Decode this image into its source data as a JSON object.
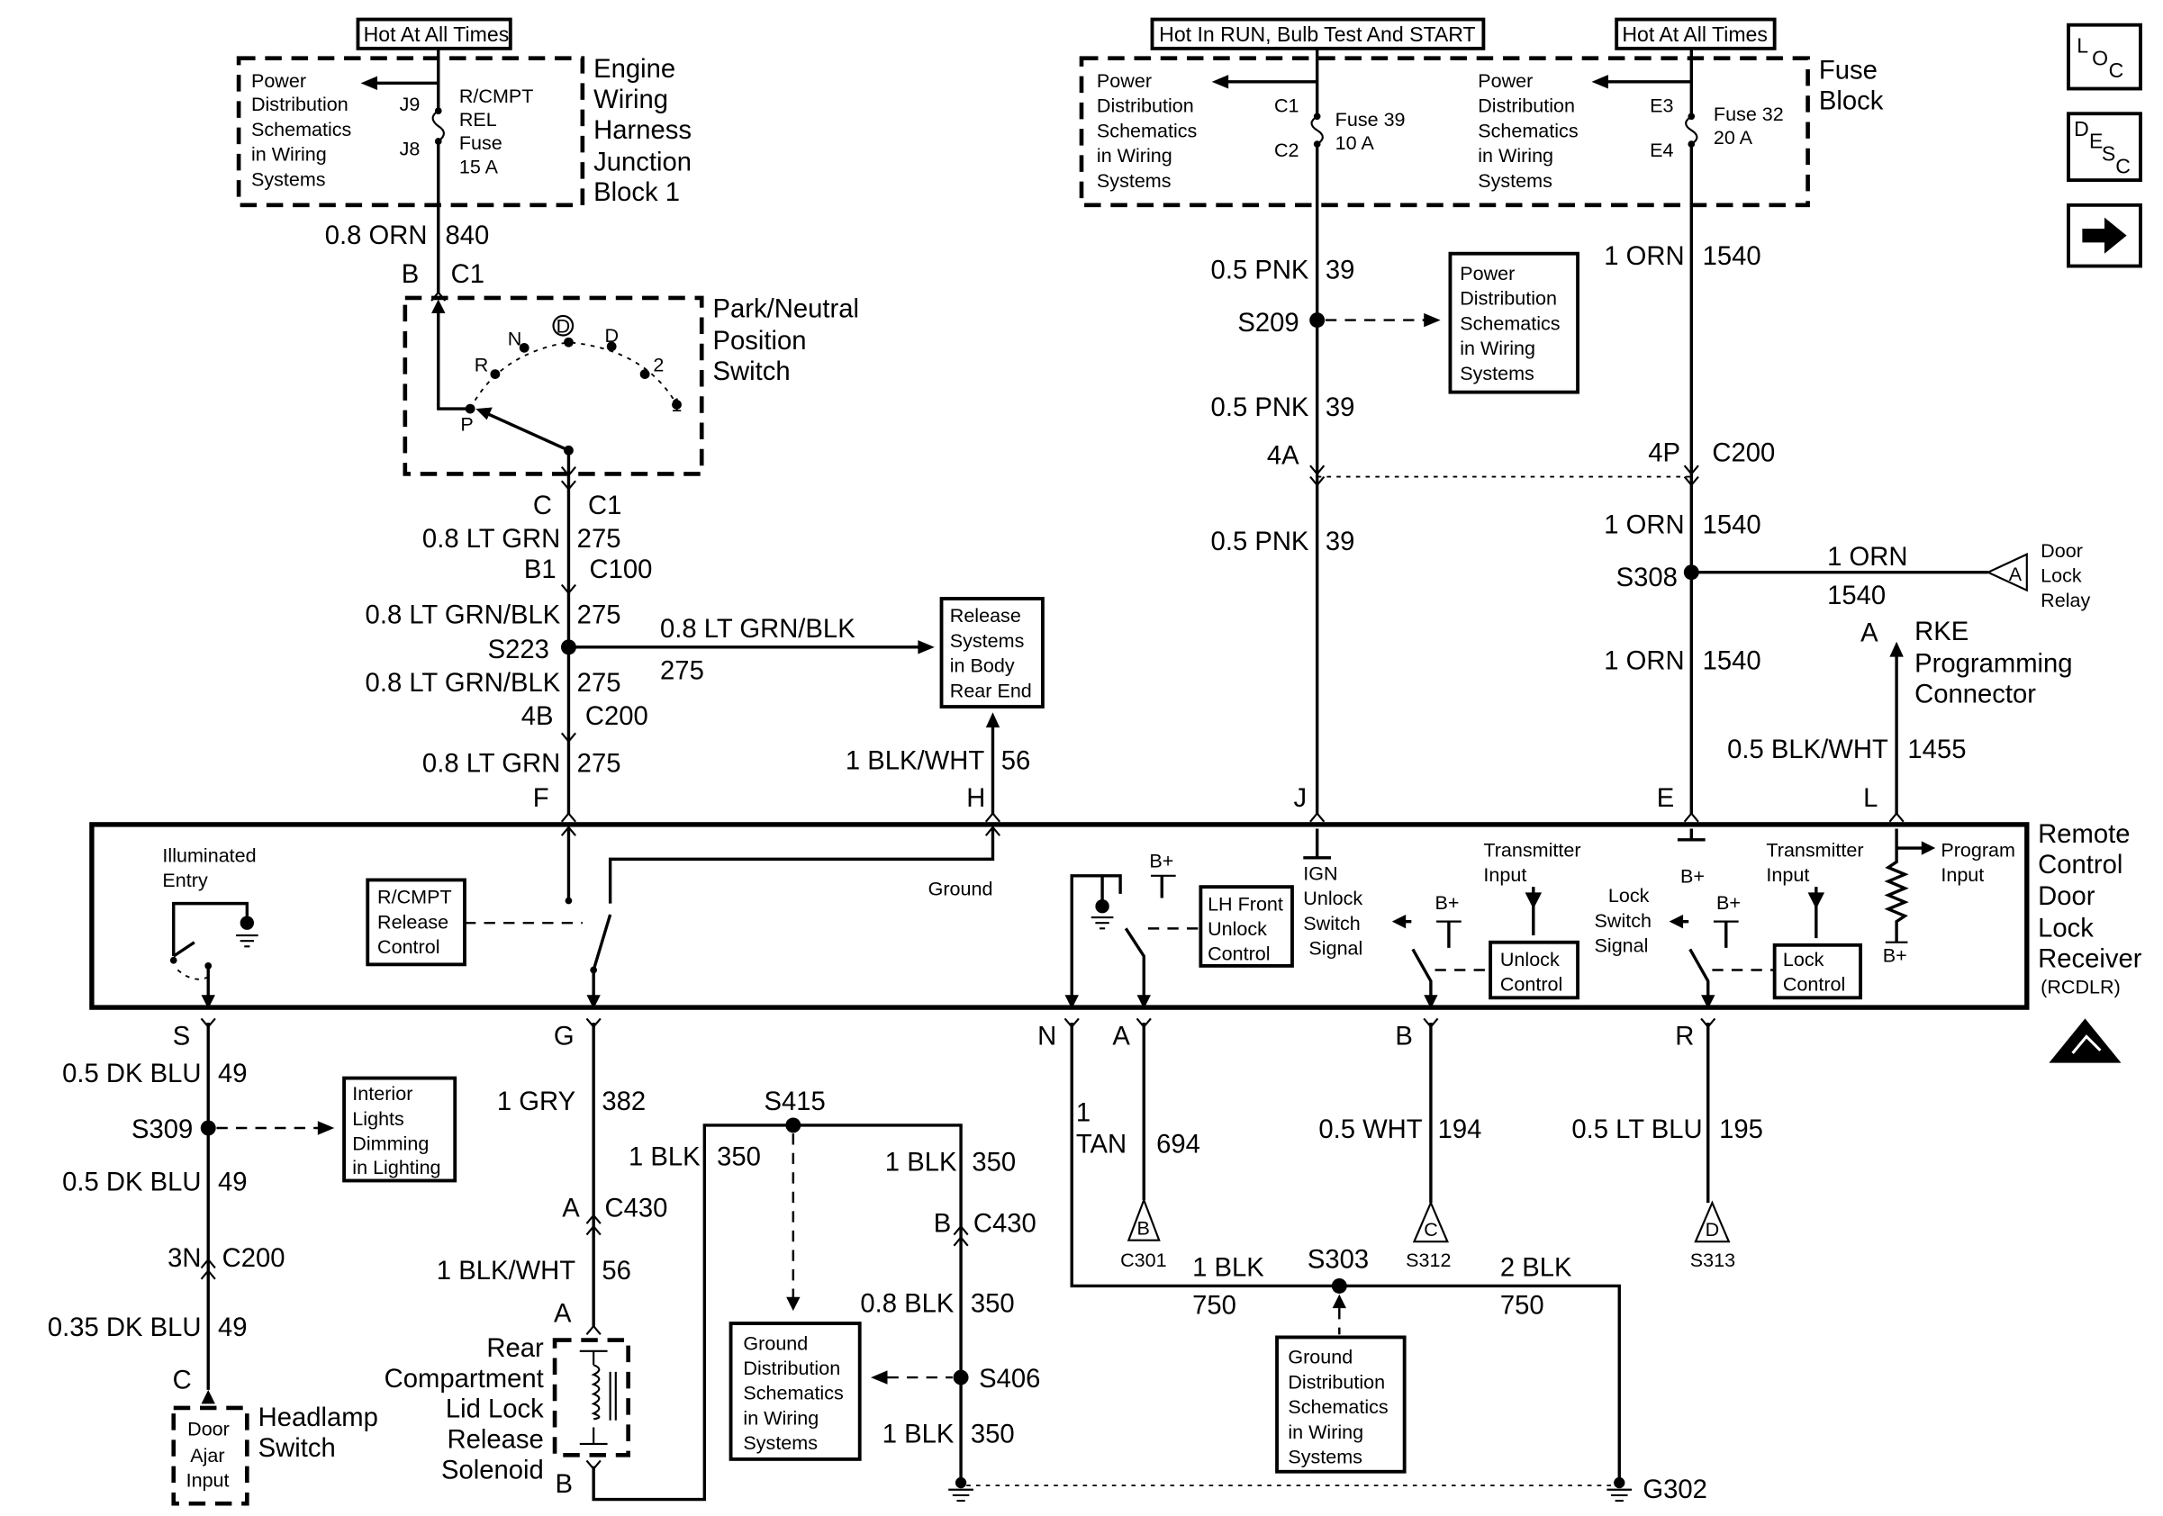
{
  "top_left": {
    "hot": "Hot At All Times",
    "pd": [
      "Power",
      "Distribution",
      "Schematics",
      "in Wiring",
      "Systems"
    ],
    "j9": "J9",
    "j8": "J8",
    "fuse": [
      "R/CMPT",
      "REL",
      "Fuse",
      "15 A"
    ],
    "block": [
      "Engine",
      "Wiring",
      "Harness",
      "Junction",
      "Block 1"
    ],
    "wire1": "0.8 ORN",
    "circ1": "840",
    "pinB": "B",
    "conn1": "C1"
  },
  "pnp": {
    "title": [
      "Park/Neutral",
      "Position",
      "Switch"
    ],
    "positions": [
      "P",
      "R",
      "N",
      "D",
      "D",
      "2",
      "1"
    ],
    "pinC": "C",
    "conn": "C1",
    "w1": "0.8 LT GRN",
    "c1": "275",
    "b1": "B1",
    "c100": "C100",
    "w2": "0.8 LT GRN/BLK",
    "c2": "275",
    "s223": "S223",
    "w3": "0.8 LT GRN/BLK",
    "c3": "275",
    "p4b": "4B",
    "c200": "C200",
    "w4": "0.8 LT GRN",
    "c4": "275",
    "pinF": "F",
    "branch_wire": "0.8 LT GRN/BLK",
    "branch_circ": "275"
  },
  "release": {
    "box": [
      "Release",
      "Systems",
      "in Body",
      "Rear End"
    ],
    "wire": "1 BLK/WHT",
    "circ": "56",
    "pinH": "H"
  },
  "top_right": {
    "hot_run": "Hot In RUN, Bulb Test And START",
    "hot": "Hot At All Times",
    "pd1": [
      "Power",
      "Distribution",
      "Schematics",
      "in Wiring",
      "Systems"
    ],
    "c1": "C1",
    "c2": "C2",
    "fuse39": [
      "Fuse 39",
      "10 A"
    ],
    "pd2": [
      "Power",
      "Distribution",
      "Schematics",
      "in Wiring",
      "Systems"
    ],
    "e3": "E3",
    "e4": "E4",
    "fuse32": [
      "Fuse 32",
      "20 A"
    ],
    "block": [
      "Fuse",
      "Block"
    ]
  },
  "pnk": {
    "w1": "0.5 PNK",
    "c1": "39",
    "s209": "S209",
    "pd": [
      "Power",
      "Distribution",
      "Schematics",
      "in Wiring",
      "Systems"
    ],
    "w2": "0.5 PNK",
    "c2": "39",
    "p4a": "4A",
    "w3": "0.5 PNK",
    "c3": "39",
    "pinJ": "J"
  },
  "orn": {
    "w1": "1 ORN",
    "c1": "1540",
    "p4p": "4P",
    "c200": "C200",
    "w2": "1 ORN",
    "c2": "1540",
    "s308": "S308",
    "w3": "1 ORN",
    "c3": "1540",
    "bw": "1 ORN",
    "bc": "1540",
    "relay_pin": "A",
    "relay": [
      "Door",
      "Lock",
      "Relay"
    ],
    "pinE": "E"
  },
  "rke": {
    "pin": "A",
    "title": [
      "RKE",
      "Programming",
      "Connector"
    ],
    "wire": "0.5 BLK/WHT",
    "circ": "1455",
    "pinL": "L"
  },
  "module": {
    "title": [
      "Remote",
      "Control",
      "Door",
      "Lock",
      "Receiver"
    ],
    "abbr": "(RCDLR)",
    "illum": [
      "Illuminated",
      "Entry"
    ],
    "rcmpt": [
      "R/CMPT",
      "Release",
      "Control"
    ],
    "ground": "Ground",
    "bplus": "B+",
    "lh": [
      "LH Front",
      "Unlock",
      "Control"
    ],
    "ign": [
      "IGN",
      "Unlock",
      "Switch",
      "Signal"
    ],
    "tx": [
      "Transmitter",
      "Input"
    ],
    "unlock": [
      "Unlock",
      "Control"
    ],
    "lock_sig": [
      "Lock",
      "Switch",
      "Signal"
    ],
    "lock": [
      "Lock",
      "Control"
    ],
    "prog": [
      "Program",
      "Input"
    ]
  },
  "bottom_s": {
    "pin": "S",
    "w1": "0.5 DK BLU",
    "c1": "49",
    "s309": "S309",
    "interior": [
      "Interior",
      "Lights",
      "Dimming",
      "in Lighting"
    ],
    "w2": "0.5 DK BLU",
    "c2": "49",
    "p3n": "3N",
    "c200": "C200",
    "w3": "0.35 DK BLU",
    "c3": "49",
    "pinC": "C",
    "door": [
      "Door",
      "Ajar",
      "Input"
    ],
    "hs": [
      "Headlamp",
      "Switch"
    ]
  },
  "bottom_g": {
    "pin": "G",
    "w1": "1 GRY",
    "c1": "382",
    "pa": "A",
    "c430": "C430",
    "w2": "1 BLK/WHT",
    "c2": "56",
    "pa2": "A",
    "sol": [
      "Rear",
      "Compartment",
      "Lid Lock",
      "Release",
      "Solenoid"
    ],
    "pb": "B",
    "w3": "1 BLK",
    "c3": "350",
    "s415": "S415",
    "gd": [
      "Ground",
      "Distribution",
      "Schematics",
      "in Wiring",
      "Systems"
    ],
    "w4": "1 BLK",
    "c4": "350",
    "pb2": "B",
    "c430b": "C430",
    "w5": "0.8 BLK",
    "c5": "350",
    "s406": "S406",
    "w6": "1 BLK",
    "c6": "350"
  },
  "bottom_n": {
    "pinN": "N",
    "pinA": "A",
    "w1a": "1",
    "w1b": "TAN",
    "c1": "694",
    "tri": "B",
    "conn": "C301",
    "w2": "1 BLK",
    "c2": "750",
    "s303": "S303",
    "w3": "2 BLK",
    "c3": "750",
    "gd": [
      "Ground",
      "Distribution",
      "Schematics",
      "in Wiring",
      "Systems"
    ],
    "g302": "G302"
  },
  "bottom_b": {
    "pin": "B",
    "wire": "0.5 WHT",
    "circ": "194",
    "tri": "C",
    "conn": "S312"
  },
  "bottom_r": {
    "pin": "R",
    "wire": "0.5 LT BLU",
    "circ": "195",
    "tri": "D",
    "conn": "S313"
  },
  "nav_icons": {
    "loc": [
      "L",
      "O",
      "C"
    ],
    "desc": [
      "D",
      "E",
      "S",
      "C"
    ],
    "next": "arrow-right-icon"
  }
}
